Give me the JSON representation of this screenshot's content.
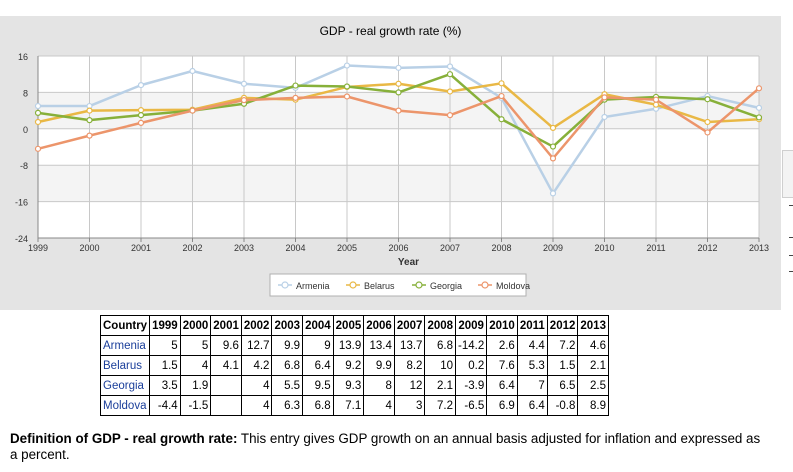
{
  "chart_data": {
    "type": "line",
    "title": "GDP - real growth rate (%)",
    "xlabel": "Year",
    "ylabel": "",
    "x": [
      "1999",
      "2000",
      "2001",
      "2002",
      "2003",
      "2004",
      "2005",
      "2006",
      "2007",
      "2008",
      "2009",
      "2010",
      "2011",
      "2012",
      "2013"
    ],
    "ylim": [
      -24,
      16
    ],
    "yticks": [
      16,
      8,
      0,
      -8,
      -16,
      -24
    ],
    "grid": true,
    "legend_position": "bottom-center",
    "series": [
      {
        "name": "Armenia",
        "color": "#b9d0e6",
        "values": [
          5,
          5,
          9.6,
          12.7,
          9.9,
          9,
          13.9,
          13.4,
          13.7,
          6.8,
          -14.2,
          2.6,
          4.4,
          7.2,
          4.6
        ]
      },
      {
        "name": "Belarus",
        "color": "#e9b845",
        "values": [
          1.5,
          4,
          4.1,
          4.2,
          6.8,
          6.4,
          9.2,
          9.9,
          8.2,
          10,
          0.2,
          7.6,
          5.3,
          1.5,
          2.1
        ]
      },
      {
        "name": "Georgia",
        "color": "#87b03a",
        "values": [
          3.5,
          1.9,
          3,
          4,
          5.5,
          9.5,
          9.3,
          8,
          12,
          2.1,
          -3.9,
          6.4,
          7,
          6.5,
          2.5
        ]
      },
      {
        "name": "Moldova",
        "color": "#ec956b",
        "values": [
          -4.4,
          -1.5,
          1.3,
          4,
          6.3,
          6.8,
          7.1,
          4,
          3,
          7.2,
          -6.5,
          6.9,
          6.4,
          -0.8,
          8.9
        ]
      }
    ]
  },
  "table": {
    "header": [
      "Country",
      "1999",
      "2000",
      "2001",
      "2002",
      "2003",
      "2004",
      "2005",
      "2006",
      "2007",
      "2008",
      "2009",
      "2010",
      "2011",
      "2012",
      "2013"
    ],
    "rows": [
      {
        "country": "Armenia",
        "cells": [
          "5",
          "5",
          "9.6",
          "12.7",
          "9.9",
          "9",
          "13.9",
          "13.4",
          "13.7",
          "6.8",
          "-14.2",
          "2.6",
          "4.4",
          "7.2",
          "4.6"
        ]
      },
      {
        "country": "Belarus",
        "cells": [
          "1.5",
          "4",
          "4.1",
          "4.2",
          "6.8",
          "6.4",
          "9.2",
          "9.9",
          "8.2",
          "10",
          "0.2",
          "7.6",
          "5.3",
          "1.5",
          "2.1"
        ]
      },
      {
        "country": "Georgia",
        "cells": [
          "3.5",
          "1.9",
          "",
          "4",
          "5.5",
          "9.5",
          "9.3",
          "8",
          "12",
          "2.1",
          "-3.9",
          "6.4",
          "7",
          "6.5",
          "2.5"
        ]
      },
      {
        "country": "Moldova",
        "cells": [
          "-4.4",
          "-1.5",
          "",
          "4",
          "6.3",
          "6.8",
          "7.1",
          "4",
          "3",
          "7.2",
          "-6.5",
          "6.9",
          "6.4",
          "-0.8",
          "8.9"
        ]
      }
    ]
  },
  "definition": {
    "label": "Definition of GDP - real growth rate:",
    "text": " This entry gives GDP growth on an annual basis adjusted for inflation and expressed as a percent."
  }
}
